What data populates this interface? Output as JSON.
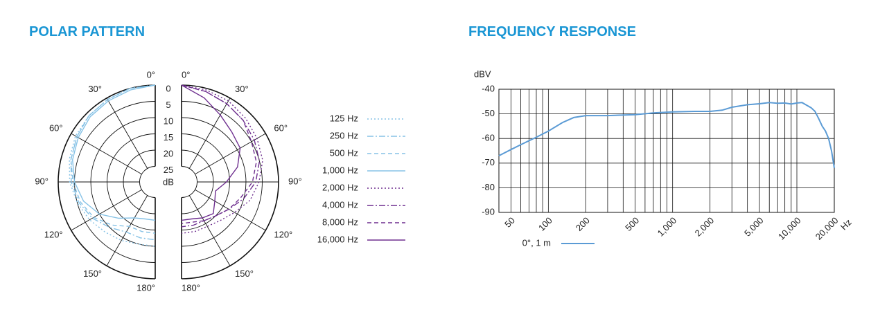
{
  "chart_data": [
    {
      "type": "polar",
      "title": "POLAR PATTERN",
      "theta": [
        0,
        15,
        30,
        45,
        60,
        75,
        90,
        105,
        120,
        135,
        150,
        165,
        180
      ],
      "rlim": [
        0,
        25
      ],
      "rticks": [
        0,
        5,
        10,
        15,
        20,
        25
      ],
      "r_label": "dB",
      "thetaticks": [
        {
          "value": 0,
          "label": "0°"
        },
        {
          "value": 30,
          "label": "30°"
        },
        {
          "value": 60,
          "label": "60°"
        },
        {
          "value": 90,
          "label": "90°"
        },
        {
          "value": 120,
          "label": "120°"
        },
        {
          "value": 150,
          "label": "150°"
        },
        {
          "value": 180,
          "label": "180°"
        }
      ],
      "series": [
        {
          "name": "125 Hz",
          "color": "#86c2e6",
          "dash": "dotted",
          "side": "left",
          "values": [
            0,
            0,
            0.5,
            1,
            1.5,
            2.5,
            3.5,
            5,
            6.5,
            8,
            9,
            10,
            10
          ]
        },
        {
          "name": "250 Hz",
          "color": "#86c2e6",
          "dash": "dashdot",
          "side": "left",
          "values": [
            0,
            0,
            0.5,
            1,
            2,
            3,
            4,
            5.5,
            7.5,
            10,
            12,
            12,
            12
          ]
        },
        {
          "name": "500 Hz",
          "color": "#86c2e6",
          "dash": "dashed",
          "side": "left",
          "values": [
            0,
            0,
            0.5,
            1,
            2,
            3,
            4.5,
            6,
            8,
            11,
            14,
            14,
            14
          ]
        },
        {
          "name": "1,000 Hz",
          "color": "#86c2e6",
          "dash": "solid",
          "side": "left",
          "values": [
            0,
            0.5,
            1,
            1.5,
            2.5,
            3.5,
            5,
            7,
            10,
            14,
            17,
            18,
            18
          ]
        },
        {
          "name": "2,000 Hz",
          "color": "#6e2f8f",
          "dash": "dotted",
          "side": "right",
          "values": [
            0,
            0.5,
            1,
            2,
            3,
            4,
            6,
            8,
            11,
            13,
            14,
            14,
            14
          ]
        },
        {
          "name": "4,000 Hz",
          "color": "#6e2f8f",
          "dash": "dashdot",
          "side": "right",
          "values": [
            0,
            1,
            2,
            3,
            4,
            5,
            7,
            10,
            13,
            15,
            16,
            16,
            16
          ]
        },
        {
          "name": "8,000 Hz",
          "color": "#6e2f8f",
          "dash": "dashed",
          "side": "right",
          "values": [
            0,
            1,
            2,
            3,
            5,
            6,
            8,
            11,
            13,
            15,
            16,
            17,
            17
          ]
        },
        {
          "name": "16,000 Hz",
          "color": "#6e2f8f",
          "dash": "solid",
          "side": "right",
          "values": [
            0,
            3,
            6,
            8,
            9,
            12,
            16,
            19,
            18,
            16,
            17,
            18,
            18
          ]
        }
      ]
    },
    {
      "type": "line",
      "title": "FREQUENCY RESPONSE",
      "ylabel": "dBV",
      "xlabel": "Hz",
      "log_x": true,
      "grid": true,
      "x": [
        40,
        50,
        60,
        80,
        100,
        130,
        160,
        200,
        300,
        500,
        700,
        1000,
        1500,
        2000,
        2500,
        3000,
        4000,
        5000,
        6000,
        7000,
        8000,
        9000,
        10000,
        11000,
        12000,
        13000,
        14000,
        15000,
        16000,
        17000,
        18000,
        19000,
        20000
      ],
      "series": [
        {
          "name": "0°, 1 m",
          "color": "#5b9bd5",
          "values": [
            -67,
            -64.5,
            -62.5,
            -59.5,
            -57,
            -53.5,
            -51.5,
            -50.7,
            -50.7,
            -50.3,
            -49.6,
            -49.2,
            -49,
            -49,
            -48.5,
            -47.3,
            -46.3,
            -45.9,
            -45.4,
            -45.7,
            -45.6,
            -46,
            -45.6,
            -45.4,
            -46.5,
            -47.5,
            -49,
            -52,
            -55,
            -57,
            -60,
            -65,
            -72
          ]
        }
      ],
      "xlim": [
        40,
        20000
      ],
      "xticks": [
        50,
        100,
        200,
        500,
        {
          "value": 1000,
          "label": "1,000"
        },
        {
          "value": 2000,
          "label": "2,000"
        },
        {
          "value": 5000,
          "label": "5,000"
        },
        {
          "value": 10000,
          "label": "10,000"
        },
        {
          "value": 20000,
          "label": "20,000"
        }
      ],
      "xminor": [
        40,
        60,
        70,
        80,
        90,
        300,
        400,
        600,
        700,
        800,
        900,
        3000,
        4000,
        6000,
        7000,
        8000,
        9000
      ],
      "ylim": [
        -90,
        -40
      ],
      "yticks": [
        -40,
        -50,
        -60,
        -70,
        -80,
        -90
      ]
    }
  ]
}
